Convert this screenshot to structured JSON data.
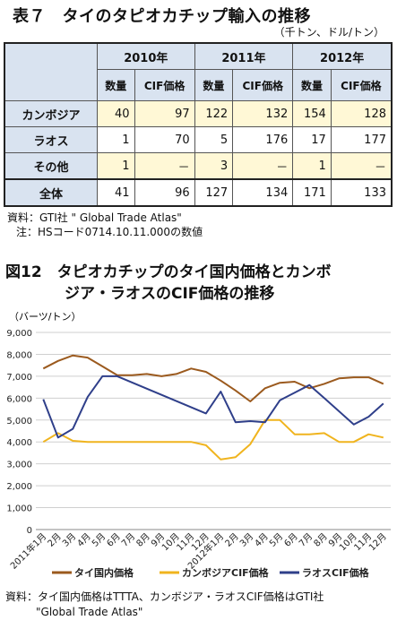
{
  "table": {
    "title": "表７　タイのタピオカチップ輸入の推移",
    "unit": "（千トン、ドル/トン）",
    "years": [
      "2010年",
      "2011年",
      "2012年"
    ],
    "subheaders": [
      "数量",
      "CIF価格",
      "数量",
      "CIF価格",
      "数量",
      "CIF価格"
    ],
    "rows": [
      {
        "label": "カンボジア",
        "cells": [
          "40",
          "97",
          "122",
          "132",
          "154",
          "128"
        ]
      },
      {
        "label": "ラオス",
        "cells": [
          "1",
          "70",
          "5",
          "176",
          "17",
          "177"
        ]
      },
      {
        "label": "その他",
        "cells": [
          "1",
          "－",
          "3",
          "－",
          "1",
          "－"
        ]
      },
      {
        "label": "全体",
        "cells": [
          "41",
          "96",
          "127",
          "134",
          "171",
          "133"
        ]
      }
    ],
    "source": "資料：GTI社 \"  Global Trade Atlas\"",
    "note": "注：HSコード0714.10.11.000の数値"
  },
  "figure": {
    "title_line1": "図12　タピオカチップのタイ国内価格とカンボ",
    "title_line2": "ジア・ラオスのCIF価格の推移",
    "source_line1": "資料：タイ国内価格はTTTA、カンボジア・ラオスCIF価格はGTI社",
    "source_line2": "\"Global Trade Atlas\""
  },
  "chart_data": {
    "type": "line",
    "ylabel": "（バーツ/トン）",
    "ylim": [
      0,
      9000
    ],
    "yticks": [
      "0",
      "1,000",
      "2,000",
      "3,000",
      "4,000",
      "5,000",
      "6,000",
      "7,000",
      "8,000",
      "9,000"
    ],
    "grid": true,
    "legend_position": "bottom",
    "categories": [
      "2011年1月",
      "2月",
      "3月",
      "4月",
      "5月",
      "6月",
      "7月",
      "8月",
      "9月",
      "10月",
      "11月",
      "12月",
      "2012年1月",
      "2月",
      "3月",
      "4月",
      "5月",
      "6月",
      "7月",
      "8月",
      "9月",
      "10月",
      "11月",
      "12月"
    ],
    "series": [
      {
        "name": "タイ国内価格",
        "color": "#9b5a1e",
        "values": [
          7350,
          7700,
          7950,
          7850,
          7450,
          7050,
          7050,
          7100,
          7000,
          7100,
          7350,
          7200,
          6800,
          6350,
          5850,
          6450,
          6700,
          6750,
          6450,
          6650,
          6900,
          6950,
          6950,
          6650
        ]
      },
      {
        "name": "カンボジアCIF価格",
        "color": "#f0b41e",
        "values": [
          4000,
          4400,
          4050,
          4000,
          4000,
          4000,
          4000,
          4000,
          4000,
          4000,
          4000,
          3850,
          3200,
          3300,
          3900,
          5000,
          5000,
          4350,
          4350,
          4400,
          4000,
          4000,
          4350,
          4200
        ]
      },
      {
        "name": "ラオスCIF価格",
        "color": "#2f3f8a",
        "values": [
          5950,
          4200,
          4600,
          6050,
          7000,
          7000,
          null,
          null,
          null,
          null,
          null,
          5300,
          6300,
          4900,
          4950,
          4900,
          5900,
          6250,
          6600,
          6000,
          null,
          4800,
          5150,
          5750
        ]
      }
    ]
  }
}
